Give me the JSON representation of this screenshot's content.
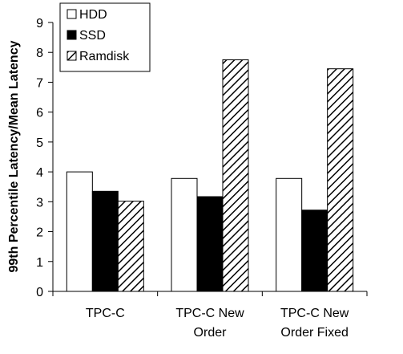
{
  "chart_data": {
    "type": "bar",
    "title": "",
    "xlabel": "",
    "ylabel": "99th Percentile Latency/Mean Latency",
    "ylim": [
      0,
      9
    ],
    "yticks": [
      0,
      1,
      2,
      3,
      4,
      5,
      6,
      7,
      8,
      9
    ],
    "grid": false,
    "legend_position": "top-left",
    "categories": [
      [
        "TPC-C"
      ],
      [
        "TPC-C New",
        "Order"
      ],
      [
        "TPC-C New",
        "Order Fixed"
      ]
    ],
    "series": [
      {
        "name": "HDD",
        "fill": "white",
        "values": [
          4.0,
          3.78,
          3.78
        ]
      },
      {
        "name": "SSD",
        "fill": "black",
        "values": [
          3.35,
          3.17,
          2.72
        ]
      },
      {
        "name": "Ramdisk",
        "fill": "hatch",
        "values": [
          3.02,
          7.75,
          7.45
        ]
      }
    ],
    "colors": {
      "axis": "#000000",
      "bar_outline": "#000000",
      "black_fill": "#000000",
      "white_fill": "#ffffff"
    }
  }
}
